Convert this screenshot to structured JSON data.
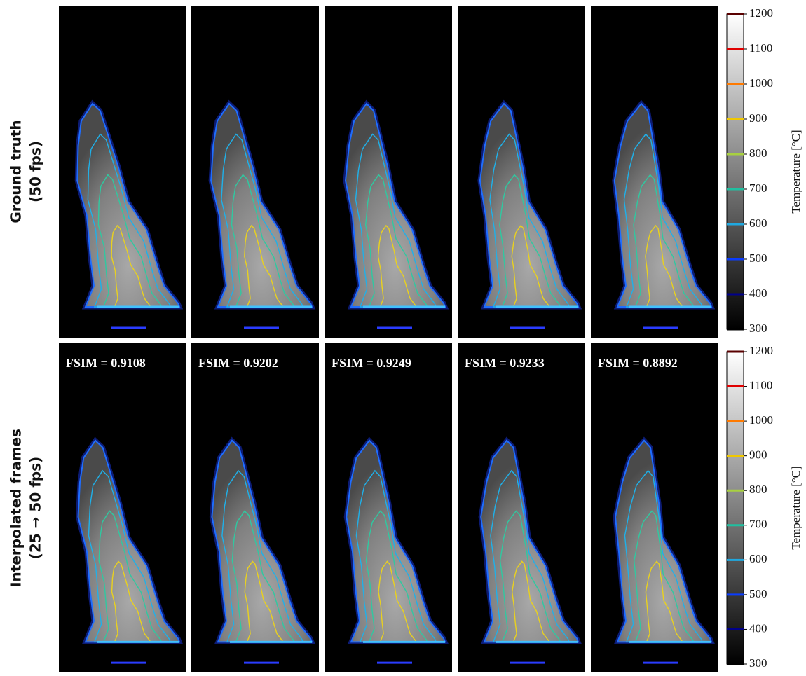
{
  "rows": [
    {
      "label_line1": "Ground truth",
      "label_line2": "(50 fps)"
    },
    {
      "label_line1": "Interpolated frames",
      "label_line2": "(25 → 50 fps)",
      "fsim": [
        "FSIM = 0.9108",
        "FSIM = 0.9202",
        "FSIM = 0.9249",
        "FSIM = 0.9233",
        "FSIM = 0.8892"
      ]
    }
  ],
  "colorbar": {
    "label": "Temperature [°C]",
    "lim": [
      300,
      1200
    ],
    "ticks": [
      300,
      400,
      500,
      600,
      700,
      800,
      900,
      1000,
      1100,
      1200
    ],
    "tick_colors": [
      "#000000",
      "#00008b",
      "#0a3cff",
      "#1fa8e0",
      "#20c0a0",
      "#a8d040",
      "#f0c800",
      "#ff7a00",
      "#e00000",
      "#5a0000"
    ]
  }
}
